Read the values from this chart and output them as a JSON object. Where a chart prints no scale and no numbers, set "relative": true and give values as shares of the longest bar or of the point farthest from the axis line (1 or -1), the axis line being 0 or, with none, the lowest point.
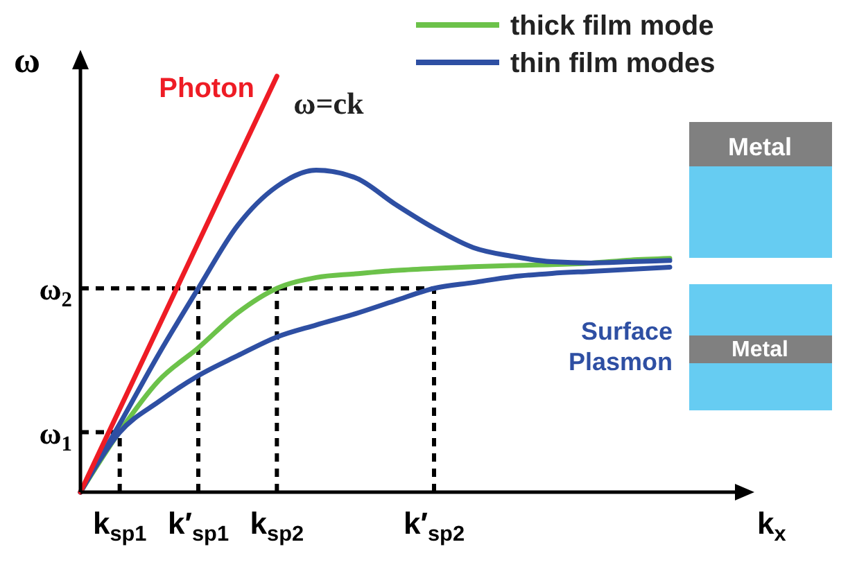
{
  "chart_data": {
    "type": "line",
    "relative": true,
    "xlabel": "k$_{x}$",
    "ylabel": "ω",
    "legend": "top right",
    "categories": [
      null,
      "k$_{sp1}$",
      null,
      "k′$_{sp1}$",
      null,
      "k$_{sp2}$",
      null,
      null,
      null,
      "k′$_{sp2}$",
      null,
      null,
      null,
      null,
      null,
      null
    ],
    "series": [
      {
        "name": "thick film mode",
        "color": "#6cc24a",
        "values": [
          0,
          0.146,
          0.269,
          0.347,
          0.431,
          0.49,
          0.516,
          0.525,
          0.533,
          0.538,
          0.542,
          0.545,
          0.547,
          0.551,
          0.558,
          0.562
        ]
      },
      {
        "name": "thin film modes",
        "color": "#2e4fa3",
        "values": [
          0,
          0.164,
          0.333,
          0.49,
          0.641,
          0.735,
          0.774,
          0.756,
          0.693,
          0.635,
          0.588,
          0.567,
          0.554,
          0.551,
          0.554,
          0.557
        ]
      },
      {
        "color": "#2e4fa3",
        "values": [
          0,
          0.144,
          0.218,
          0.28,
          0.328,
          0.373,
          0.402,
          0.429,
          0.46,
          0.49,
          0.504,
          0.518,
          0.526,
          0.531,
          0.536,
          0.541
        ]
      },
      {
        "color": "#ee1c25",
        "values": [
          0,
          0.2,
          0.4,
          0.6,
          0.8,
          1,
          null,
          null,
          null,
          null,
          null,
          null,
          null,
          null,
          null,
          null
        ]
      }
    ],
    "ref_lines": [
      {
        "axis": "y",
        "value": 0.144,
        "label": "ω$_{1}$",
        "color": "#000000",
        "line_style": "dashed"
      },
      {
        "axis": "y",
        "value": 0.49,
        "label": "ω$_{2}$",
        "color": "#000000",
        "line_style": "dashed"
      },
      {
        "axis": "x",
        "value": "k$_{sp1}$",
        "color": "#000000",
        "line_style": "dashed"
      },
      {
        "axis": "x",
        "value": "k′$_{sp1}$",
        "color": "#000000",
        "line_style": "dashed"
      },
      {
        "axis": "x",
        "value": "k$_{sp2}$",
        "color": "#000000",
        "line_style": "dashed"
      },
      {
        "axis": "x",
        "value": "k′$_{sp2}$",
        "color": "#000000",
        "line_style": "dashed"
      }
    ],
    "annotations": [
      "Photon",
      "ω=ck",
      "Metal",
      "Metal",
      "Surface Plasmon"
    ]
  }
}
